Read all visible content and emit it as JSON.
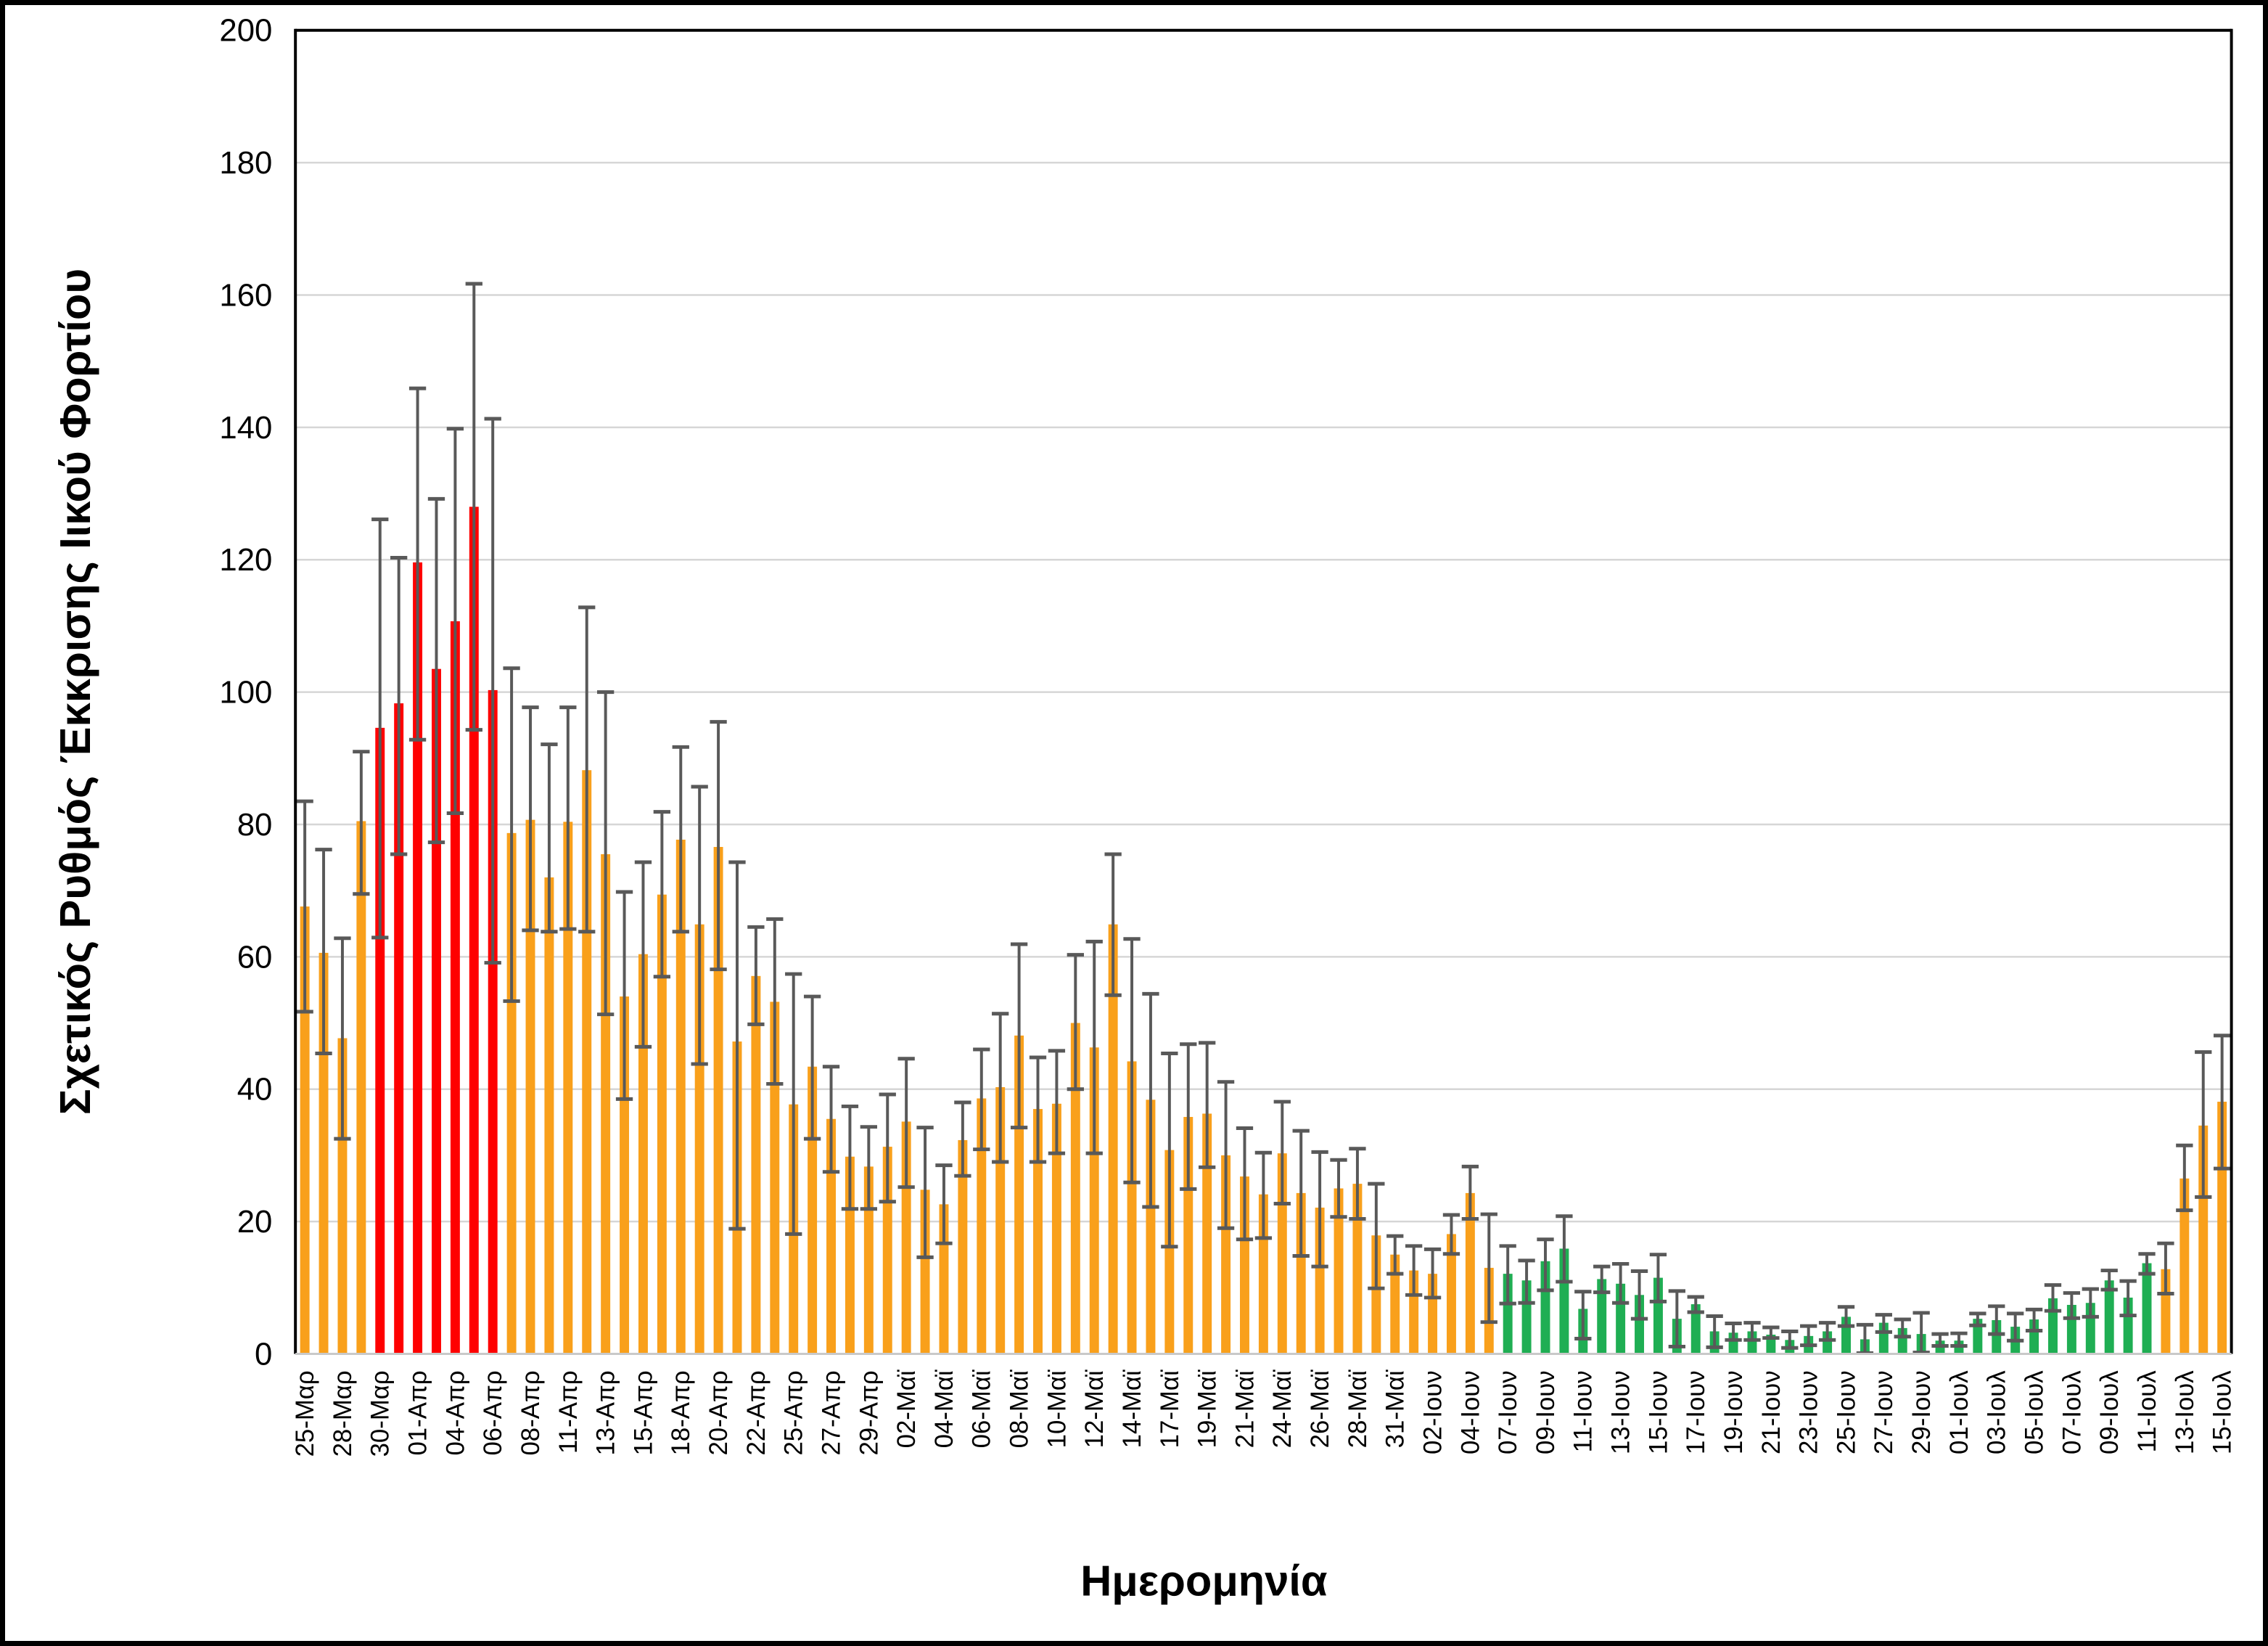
{
  "chart_data": {
    "type": "bar",
    "title": "",
    "ylabel": "Σχετικός Ρυθμός Έκκρισης Ιικού Φορτίου",
    "xlabel": "Ημερομηνία",
    "ylim": [
      0,
      200
    ],
    "yticks": [
      0,
      20,
      40,
      60,
      80,
      100,
      120,
      140,
      160,
      180,
      200
    ],
    "grid": true,
    "legend": "none",
    "error_bars": true,
    "colors": {
      "orange": "#F9A01B",
      "red": "#FE0000",
      "green": "#1FAE53",
      "error": "#595959",
      "gridline": "#d6d6d6",
      "border": "#000000"
    },
    "bars": [
      {
        "label": "25-Μαρ",
        "value": 67.6,
        "lo": 51.7,
        "hi": 83.5,
        "color": "orange"
      },
      {
        "label": "",
        "value": 60.6,
        "lo": 45.4,
        "hi": 76.2,
        "color": "orange"
      },
      {
        "label": "28-Μαρ",
        "value": 47.7,
        "lo": 32.5,
        "hi": 62.8,
        "color": "orange"
      },
      {
        "label": "",
        "value": 80.5,
        "lo": 69.5,
        "hi": 91.0,
        "color": "orange"
      },
      {
        "label": "30-Μαρ",
        "value": 94.6,
        "lo": 62.9,
        "hi": 126.1,
        "color": "red"
      },
      {
        "label": "",
        "value": 98.3,
        "lo": 75.5,
        "hi": 120.3,
        "color": "red"
      },
      {
        "label": "01-Απρ",
        "value": 119.6,
        "lo": 92.8,
        "hi": 145.9,
        "color": "red"
      },
      {
        "label": "",
        "value": 103.5,
        "lo": 77.3,
        "hi": 129.2,
        "color": "red"
      },
      {
        "label": "04-Απρ",
        "value": 110.7,
        "lo": 81.7,
        "hi": 139.8,
        "color": "red"
      },
      {
        "label": "",
        "value": 128.0,
        "lo": 94.3,
        "hi": 161.7,
        "color": "red"
      },
      {
        "label": "06-Απρ",
        "value": 100.3,
        "lo": 59.1,
        "hi": 141.3,
        "color": "red"
      },
      {
        "label": "",
        "value": 78.7,
        "lo": 53.3,
        "hi": 103.6,
        "color": "orange"
      },
      {
        "label": "08-Απρ",
        "value": 80.7,
        "lo": 64.0,
        "hi": 97.7,
        "color": "orange"
      },
      {
        "label": "",
        "value": 72.0,
        "lo": 63.8,
        "hi": 92.1,
        "color": "orange"
      },
      {
        "label": "11-Απρ",
        "value": 80.4,
        "lo": 64.2,
        "hi": 97.7,
        "color": "orange"
      },
      {
        "label": "",
        "value": 88.2,
        "lo": 63.8,
        "hi": 112.8,
        "color": "orange"
      },
      {
        "label": "13-Απρ",
        "value": 75.5,
        "lo": 51.3,
        "hi": 100.0,
        "color": "orange"
      },
      {
        "label": "",
        "value": 54.0,
        "lo": 38.5,
        "hi": 69.8,
        "color": "orange"
      },
      {
        "label": "15-Απρ",
        "value": 60.4,
        "lo": 46.4,
        "hi": 74.3,
        "color": "orange"
      },
      {
        "label": "",
        "value": 69.4,
        "lo": 57.0,
        "hi": 81.9,
        "color": "orange"
      },
      {
        "label": "18-Απρ",
        "value": 77.7,
        "lo": 63.8,
        "hi": 91.7,
        "color": "orange"
      },
      {
        "label": "",
        "value": 64.9,
        "lo": 43.8,
        "hi": 85.7,
        "color": "orange"
      },
      {
        "label": "20-Απρ",
        "value": 76.6,
        "lo": 58.1,
        "hi": 95.5,
        "color": "orange"
      },
      {
        "label": "",
        "value": 47.2,
        "lo": 18.9,
        "hi": 74.3,
        "color": "orange"
      },
      {
        "label": "22-Απρ",
        "value": 57.1,
        "lo": 49.8,
        "hi": 64.5,
        "color": "orange"
      },
      {
        "label": "",
        "value": 53.2,
        "lo": 40.8,
        "hi": 65.7,
        "color": "orange"
      },
      {
        "label": "25-Απρ",
        "value": 37.7,
        "lo": 18.1,
        "hi": 57.4,
        "color": "orange"
      },
      {
        "label": "",
        "value": 43.4,
        "lo": 32.5,
        "hi": 54.0,
        "color": "orange"
      },
      {
        "label": "27-Απρ",
        "value": 35.5,
        "lo": 27.5,
        "hi": 43.4,
        "color": "orange"
      },
      {
        "label": "",
        "value": 29.8,
        "lo": 21.9,
        "hi": 37.4,
        "color": "orange"
      },
      {
        "label": "29-Απρ",
        "value": 28.3,
        "lo": 21.9,
        "hi": 34.3,
        "color": "orange"
      },
      {
        "label": "",
        "value": 31.3,
        "lo": 23.0,
        "hi": 39.2,
        "color": "orange"
      },
      {
        "label": "02-Μαϊ",
        "value": 35.1,
        "lo": 25.2,
        "hi": 44.6,
        "color": "orange"
      },
      {
        "label": "",
        "value": 24.8,
        "lo": 14.6,
        "hi": 34.2,
        "color": "orange"
      },
      {
        "label": "04-Μαϊ",
        "value": 22.6,
        "lo": 16.7,
        "hi": 28.5,
        "color": "orange"
      },
      {
        "label": "",
        "value": 32.3,
        "lo": 26.9,
        "hi": 38.0,
        "color": "orange"
      },
      {
        "label": "06-Μαϊ",
        "value": 38.6,
        "lo": 30.9,
        "hi": 46.0,
        "color": "orange"
      },
      {
        "label": "",
        "value": 40.3,
        "lo": 29.0,
        "hi": 51.4,
        "color": "orange"
      },
      {
        "label": "08-Μαϊ",
        "value": 48.1,
        "lo": 34.2,
        "hi": 61.9,
        "color": "orange"
      },
      {
        "label": "",
        "value": 37.0,
        "lo": 29.0,
        "hi": 44.8,
        "color": "orange"
      },
      {
        "label": "10-Μαϊ",
        "value": 37.8,
        "lo": 30.3,
        "hi": 45.8,
        "color": "orange"
      },
      {
        "label": "",
        "value": 50.0,
        "lo": 40.0,
        "hi": 60.3,
        "color": "orange"
      },
      {
        "label": "12-Μαϊ",
        "value": 46.3,
        "lo": 30.3,
        "hi": 62.3,
        "color": "orange"
      },
      {
        "label": "",
        "value": 64.9,
        "lo": 54.2,
        "hi": 75.5,
        "color": "orange"
      },
      {
        "label": "14-Μαϊ",
        "value": 44.2,
        "lo": 25.9,
        "hi": 62.7,
        "color": "orange"
      },
      {
        "label": "",
        "value": 38.4,
        "lo": 22.2,
        "hi": 54.4,
        "color": "orange"
      },
      {
        "label": "17-Μαϊ",
        "value": 30.8,
        "lo": 16.2,
        "hi": 45.4,
        "color": "orange"
      },
      {
        "label": "",
        "value": 35.8,
        "lo": 24.9,
        "hi": 46.8,
        "color": "orange"
      },
      {
        "label": "19-Μαϊ",
        "value": 36.3,
        "lo": 28.2,
        "hi": 47.0,
        "color": "orange"
      },
      {
        "label": "",
        "value": 30.0,
        "lo": 19.0,
        "hi": 41.1,
        "color": "orange"
      },
      {
        "label": "21-Μαϊ",
        "value": 26.8,
        "lo": 17.3,
        "hi": 34.1,
        "color": "orange"
      },
      {
        "label": "",
        "value": 24.1,
        "lo": 17.5,
        "hi": 30.4,
        "color": "orange"
      },
      {
        "label": "24-Μαϊ",
        "value": 30.3,
        "lo": 22.7,
        "hi": 38.1,
        "color": "orange"
      },
      {
        "label": "",
        "value": 24.3,
        "lo": 14.8,
        "hi": 33.7,
        "color": "orange"
      },
      {
        "label": "26-Μαϊ",
        "value": 22.1,
        "lo": 13.2,
        "hi": 30.5,
        "color": "orange"
      },
      {
        "label": "",
        "value": 25.0,
        "lo": 20.7,
        "hi": 29.3,
        "color": "orange"
      },
      {
        "label": "28-Μαϊ",
        "value": 25.7,
        "lo": 20.4,
        "hi": 31.0,
        "color": "orange"
      },
      {
        "label": "",
        "value": 17.9,
        "lo": 9.9,
        "hi": 25.7,
        "color": "orange"
      },
      {
        "label": "31-Μαϊ",
        "value": 15.0,
        "lo": 12.1,
        "hi": 17.8,
        "color": "orange"
      },
      {
        "label": "",
        "value": 12.6,
        "lo": 8.9,
        "hi": 16.3,
        "color": "orange"
      },
      {
        "label": "02-Ιουν",
        "value": 12.1,
        "lo": 8.5,
        "hi": 15.8,
        "color": "orange"
      },
      {
        "label": "",
        "value": 18.1,
        "lo": 15.1,
        "hi": 21.0,
        "color": "orange"
      },
      {
        "label": "04-Ιουν",
        "value": 24.3,
        "lo": 20.4,
        "hi": 28.3,
        "color": "orange"
      },
      {
        "label": "",
        "value": 13.0,
        "lo": 4.8,
        "hi": 21.1,
        "color": "orange"
      },
      {
        "label": "07-Ιουν",
        "value": 12.1,
        "lo": 7.6,
        "hi": 16.3,
        "color": "green"
      },
      {
        "label": "",
        "value": 11.1,
        "lo": 7.7,
        "hi": 14.1,
        "color": "green"
      },
      {
        "label": "09-Ιουν",
        "value": 14.0,
        "lo": 9.6,
        "hi": 17.3,
        "color": "green"
      },
      {
        "label": "",
        "value": 15.9,
        "lo": 10.9,
        "hi": 20.8,
        "color": "green"
      },
      {
        "label": "11-Ιουν",
        "value": 6.8,
        "lo": 2.3,
        "hi": 9.4,
        "color": "green"
      },
      {
        "label": "",
        "value": 11.3,
        "lo": 9.3,
        "hi": 13.2,
        "color": "green"
      },
      {
        "label": "13-Ιουν",
        "value": 10.6,
        "lo": 7.7,
        "hi": 13.6,
        "color": "green"
      },
      {
        "label": "",
        "value": 8.9,
        "lo": 5.3,
        "hi": 12.5,
        "color": "green"
      },
      {
        "label": "15-Ιουν",
        "value": 11.5,
        "lo": 7.9,
        "hi": 15.0,
        "color": "green"
      },
      {
        "label": "",
        "value": 5.3,
        "lo": 1.1,
        "hi": 9.5,
        "color": "green"
      },
      {
        "label": "17-Ιουν",
        "value": 7.5,
        "lo": 6.3,
        "hi": 8.6,
        "color": "green"
      },
      {
        "label": "",
        "value": 3.4,
        "lo": 1.0,
        "hi": 5.7,
        "color": "green"
      },
      {
        "label": "19-Ιουν",
        "value": 3.2,
        "lo": 2.1,
        "hi": 4.6,
        "color": "green"
      },
      {
        "label": "",
        "value": 3.4,
        "lo": 2.1,
        "hi": 4.7,
        "color": "green"
      },
      {
        "label": "21-Ιουν",
        "value": 2.9,
        "lo": 2.4,
        "hi": 4.0,
        "color": "green"
      },
      {
        "label": "",
        "value": 2.1,
        "lo": 0.9,
        "hi": 3.4,
        "color": "green"
      },
      {
        "label": "23-Ιουν",
        "value": 2.7,
        "lo": 1.3,
        "hi": 4.2,
        "color": "green"
      },
      {
        "label": "",
        "value": 3.4,
        "lo": 2.1,
        "hi": 4.7,
        "color": "green"
      },
      {
        "label": "25-Ιουν",
        "value": 5.6,
        "lo": 4.2,
        "hi": 7.1,
        "color": "green"
      },
      {
        "label": "",
        "value": 2.2,
        "lo": 0.1,
        "hi": 4.4,
        "color": "green"
      },
      {
        "label": "27-Ιουν",
        "value": 4.7,
        "lo": 3.3,
        "hi": 5.9,
        "color": "green"
      },
      {
        "label": "",
        "value": 3.9,
        "lo": 2.6,
        "hi": 5.2,
        "color": "green"
      },
      {
        "label": "29-Ιουν",
        "value": 3.0,
        "lo": 0.2,
        "hi": 6.2,
        "color": "green"
      },
      {
        "label": "",
        "value": 2.0,
        "lo": 1.2,
        "hi": 3.0,
        "color": "green"
      },
      {
        "label": "01-Ιουλ",
        "value": 2.0,
        "lo": 1.2,
        "hi": 3.1,
        "color": "green"
      },
      {
        "label": "",
        "value": 5.3,
        "lo": 4.3,
        "hi": 6.1,
        "color": "green"
      },
      {
        "label": "03-Ιουλ",
        "value": 5.1,
        "lo": 3.0,
        "hi": 7.2,
        "color": "green"
      },
      {
        "label": "",
        "value": 4.1,
        "lo": 2.0,
        "hi": 6.1,
        "color": "green"
      },
      {
        "label": "05-Ιουλ",
        "value": 5.2,
        "lo": 3.5,
        "hi": 6.7,
        "color": "green"
      },
      {
        "label": "",
        "value": 8.4,
        "lo": 6.5,
        "hi": 10.4,
        "color": "green"
      },
      {
        "label": "07-Ιουλ",
        "value": 7.4,
        "lo": 5.4,
        "hi": 9.2,
        "color": "green"
      },
      {
        "label": "",
        "value": 7.7,
        "lo": 5.6,
        "hi": 9.8,
        "color": "green"
      },
      {
        "label": "09-Ιουλ",
        "value": 11.1,
        "lo": 9.7,
        "hi": 12.6,
        "color": "green"
      },
      {
        "label": "",
        "value": 8.5,
        "lo": 5.8,
        "hi": 11.0,
        "color": "green"
      },
      {
        "label": "11-Ιουλ",
        "value": 13.7,
        "lo": 12.1,
        "hi": 15.1,
        "color": "green"
      },
      {
        "label": "",
        "value": 12.8,
        "lo": 9.1,
        "hi": 16.7,
        "color": "orange"
      },
      {
        "label": "13-Ιουλ",
        "value": 26.5,
        "lo": 21.7,
        "hi": 31.5,
        "color": "orange"
      },
      {
        "label": "",
        "value": 34.5,
        "lo": 23.7,
        "hi": 45.6,
        "color": "orange"
      },
      {
        "label": "15-Ιουλ",
        "value": 38.1,
        "lo": 28.0,
        "hi": 48.1,
        "color": "orange"
      }
    ]
  }
}
